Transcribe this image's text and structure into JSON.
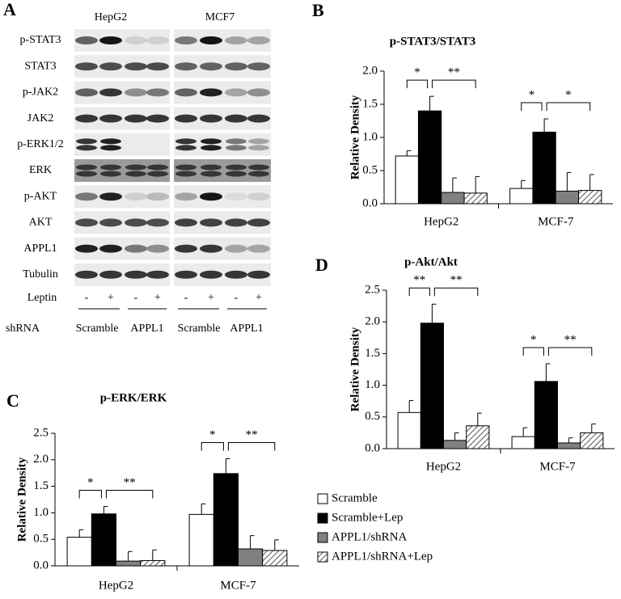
{
  "blot": {
    "label": "A",
    "cell_lines": [
      "HepG2",
      "MCF7"
    ],
    "rows": [
      "p-STAT3",
      "STAT3",
      "p-JAK2",
      "JAK2",
      "p-ERK1/2",
      "ERK",
      "p-AKT",
      "AKT",
      "APPL1",
      "Tubulin"
    ],
    "leptin": {
      "label": "Leptin",
      "lanes": [
        "-",
        "+",
        "-",
        "+",
        "-",
        "+",
        "-",
        "+"
      ]
    },
    "shrna": {
      "label": "shRNA",
      "groups": [
        "Scramble",
        "APPL1",
        "Scramble",
        "APPL1"
      ]
    }
  },
  "chart_data": [
    {
      "type": "bar",
      "label": "B",
      "title": "p-STAT3/STAT3",
      "y_label": "Relative Density",
      "categories": [
        "HepG2",
        "MCF-7"
      ],
      "ylim": [
        0,
        2.0
      ],
      "yticks": [
        {
          "value": 0,
          "label": "0.0"
        },
        0.5,
        {
          "value": 1,
          "label": "1.0"
        },
        1.5,
        {
          "value": 2,
          "label": "2.0"
        }
      ],
      "series": [
        {
          "color": "#ffffff",
          "values": [
            0.72,
            0.23
          ],
          "errors": [
            0.08,
            0.12
          ]
        },
        {
          "color": "#000000",
          "values": [
            1.4,
            1.08
          ],
          "errors": [
            0.22,
            0.2
          ]
        },
        {
          "color": "#808080",
          "values": [
            0.17,
            0.19
          ],
          "errors": [
            0.22,
            0.28
          ]
        },
        {
          "color": "#ffffff",
          "pattern": "hatch",
          "values": [
            0.16,
            0.2
          ],
          "errors": [
            0.25,
            0.24
          ]
        }
      ],
      "significance": [
        [
          "*",
          "**"
        ],
        [
          "*",
          "*"
        ]
      ]
    },
    {
      "type": "bar",
      "label": "C",
      "title": "p-ERK/ERK",
      "y_label": "Relative Density",
      "categories": [
        "HepG2",
        "MCF-7"
      ],
      "ylim": [
        0,
        2.5
      ],
      "yticks": [
        {
          "value": 0,
          "label": "0.0"
        },
        0.5,
        {
          "value": 1,
          "label": "1.0"
        },
        1.5,
        {
          "value": 2,
          "label": "2.0"
        },
        2.5
      ],
      "series": [
        {
          "color": "#ffffff",
          "values": [
            0.54,
            0.97
          ],
          "errors": [
            0.14,
            0.2
          ]
        },
        {
          "color": "#000000",
          "values": [
            0.98,
            1.74
          ],
          "errors": [
            0.14,
            0.28
          ]
        },
        {
          "color": "#808080",
          "values": [
            0.09,
            0.32
          ],
          "errors": [
            0.18,
            0.25
          ]
        },
        {
          "color": "#ffffff",
          "pattern": "hatch",
          "values": [
            0.1,
            0.29
          ],
          "errors": [
            0.2,
            0.2
          ]
        }
      ],
      "significance": [
        [
          "*",
          "**"
        ],
        [
          "*",
          "**"
        ]
      ]
    },
    {
      "type": "bar",
      "label": "D",
      "title": "p-Akt/Akt",
      "y_label": "Relative Density",
      "categories": [
        "HepG2",
        "MCF-7"
      ],
      "ylim": [
        0,
        2.5
      ],
      "yticks": [
        {
          "value": 0,
          "label": "0.0"
        },
        0.5,
        {
          "value": 1,
          "label": "1.0"
        },
        1.5,
        {
          "value": 2,
          "label": "2.0"
        },
        2.5
      ],
      "series": [
        {
          "name": "Scramble",
          "color": "#ffffff",
          "values": [
            0.57,
            0.19
          ],
          "errors": [
            0.19,
            0.14
          ]
        },
        {
          "name": "Scramble+Lep",
          "color": "#000000",
          "values": [
            1.98,
            1.06
          ],
          "errors": [
            0.3,
            0.28
          ]
        },
        {
          "name": "APPL1/shRNA",
          "color": "#808080",
          "values": [
            0.13,
            0.09
          ],
          "errors": [
            0.12,
            0.08
          ]
        },
        {
          "name": "APPL1/shRNA+Lep",
          "color": "#ffffff",
          "pattern": "hatch",
          "values": [
            0.36,
            0.25
          ],
          "errors": [
            0.2,
            0.14
          ]
        }
      ],
      "significance": [
        [
          "**",
          "**"
        ],
        [
          "*",
          "**"
        ]
      ]
    }
  ]
}
